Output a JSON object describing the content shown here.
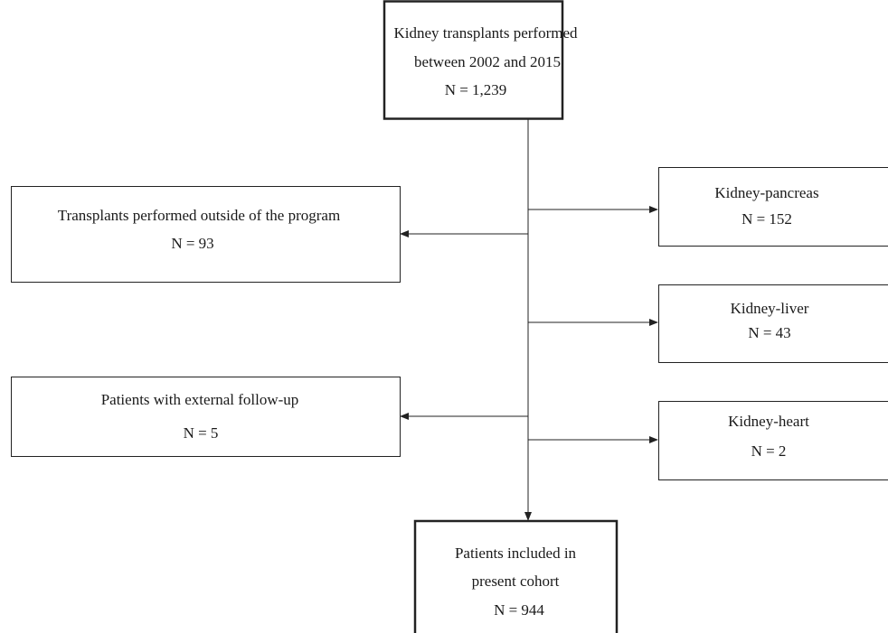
{
  "nodes": [
    {
      "lines": [
        "Kidney transplants performed",
        "between 2002 and 2015",
        "N = 1,239"
      ]
    },
    {
      "lines": [
        "Transplants performed outside of the program",
        "N = 93"
      ]
    },
    {
      "lines": [
        "Patients with external follow-up",
        "N = 5"
      ]
    },
    {
      "lines": [
        "Kidney-pancreas",
        "N = 152"
      ]
    },
    {
      "lines": [
        "Kidney-liver",
        "N = 43"
      ]
    },
    {
      "lines": [
        "Kidney-heart",
        "N = 2"
      ]
    },
    {
      "lines": [
        "Patients included in",
        "present cohort",
        "N = 944"
      ]
    }
  ]
}
